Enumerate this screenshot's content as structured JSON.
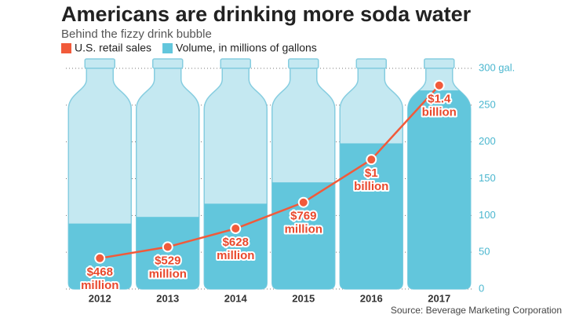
{
  "chart_data": {
    "type": "bar",
    "title": "Americans are drinking more soda water",
    "subtitle": "Behind the fizzy drink bubble",
    "source": "Source: Beverage Marketing Corporation",
    "categories": [
      "2012",
      "2013",
      "2014",
      "2015",
      "2016",
      "2017"
    ],
    "series": [
      {
        "name": "Volume, in millions of gallons",
        "color": "#62c6dc",
        "values": [
          89,
          98,
          116,
          145,
          198,
          270
        ]
      },
      {
        "name": "U.S. retail sales",
        "color": "#f15a3a",
        "type": "line",
        "axis": "y2",
        "values": [
          468000000,
          529000000,
          628000000,
          769000000,
          1000000000,
          1400000000
        ],
        "value_labels": [
          "$468 million",
          "$529 million",
          "$628 million",
          "$769 million",
          "$1 billion",
          "$1.4 billion"
        ]
      }
    ],
    "ylim": [
      0,
      300
    ],
    "yticks": [
      0,
      50,
      100,
      150,
      200,
      250,
      {
        "value": 300,
        "label": "300 gal."
      }
    ],
    "y2lim": [
      302000000,
      1492000000
    ],
    "grid": true
  }
}
